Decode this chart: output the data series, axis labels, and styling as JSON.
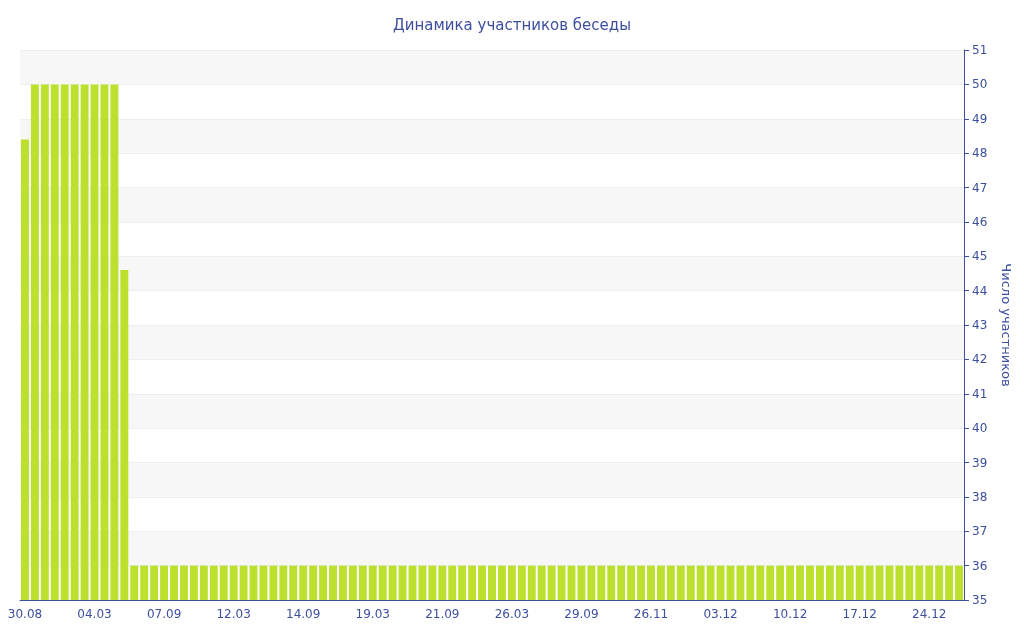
{
  "chart_data": {
    "type": "bar",
    "title": "Динамика участников беседы",
    "ylabel": "Число участников",
    "categories": [
      "30.08",
      null,
      null,
      null,
      null,
      null,
      null,
      "04.03",
      null,
      null,
      null,
      null,
      null,
      null,
      "07.09",
      null,
      null,
      null,
      null,
      null,
      null,
      "12.03",
      null,
      null,
      null,
      null,
      null,
      null,
      "14.09",
      null,
      null,
      null,
      null,
      null,
      null,
      "19.03",
      null,
      null,
      null,
      null,
      null,
      null,
      "21.09",
      null,
      null,
      null,
      null,
      null,
      null,
      "26.03",
      null,
      null,
      null,
      null,
      null,
      null,
      "29.09",
      null,
      null,
      null,
      null,
      null,
      null,
      "26.11",
      null,
      null,
      null,
      null,
      null,
      null,
      "03.12",
      null,
      null,
      null,
      null,
      null,
      null,
      "10.12",
      null,
      null,
      null,
      null,
      null,
      null,
      "17.12",
      null,
      null,
      null,
      null,
      null,
      null,
      "24.12",
      null,
      null,
      null
    ],
    "values": [
      48.4,
      50,
      50,
      50,
      50,
      50,
      50,
      50,
      50,
      50,
      44.6,
      36,
      36,
      36,
      36,
      36,
      36,
      36,
      36,
      36,
      36,
      36,
      36,
      36,
      36,
      36,
      36,
      36,
      36,
      36,
      36,
      36,
      36,
      36,
      36,
      36,
      36,
      36,
      36,
      36,
      36,
      36,
      36,
      36,
      36,
      36,
      36,
      36,
      36,
      36,
      36,
      36,
      36,
      36,
      36,
      36,
      36,
      36,
      36,
      36,
      36,
      36,
      36,
      36,
      36,
      36,
      36,
      36,
      36,
      36,
      36,
      36,
      36,
      36,
      36,
      36,
      36,
      36,
      36,
      36,
      36,
      36,
      36,
      36,
      36,
      36,
      36,
      36,
      36,
      36,
      36,
      36,
      36,
      36,
      36
    ],
    "color": "#bde02e",
    "ylim": [
      35,
      51
    ],
    "yticks": [
      35,
      36,
      37,
      38,
      39,
      40,
      41,
      42,
      43,
      44,
      45,
      46,
      47,
      48,
      49,
      50,
      51
    ],
    "grid": "y"
  }
}
